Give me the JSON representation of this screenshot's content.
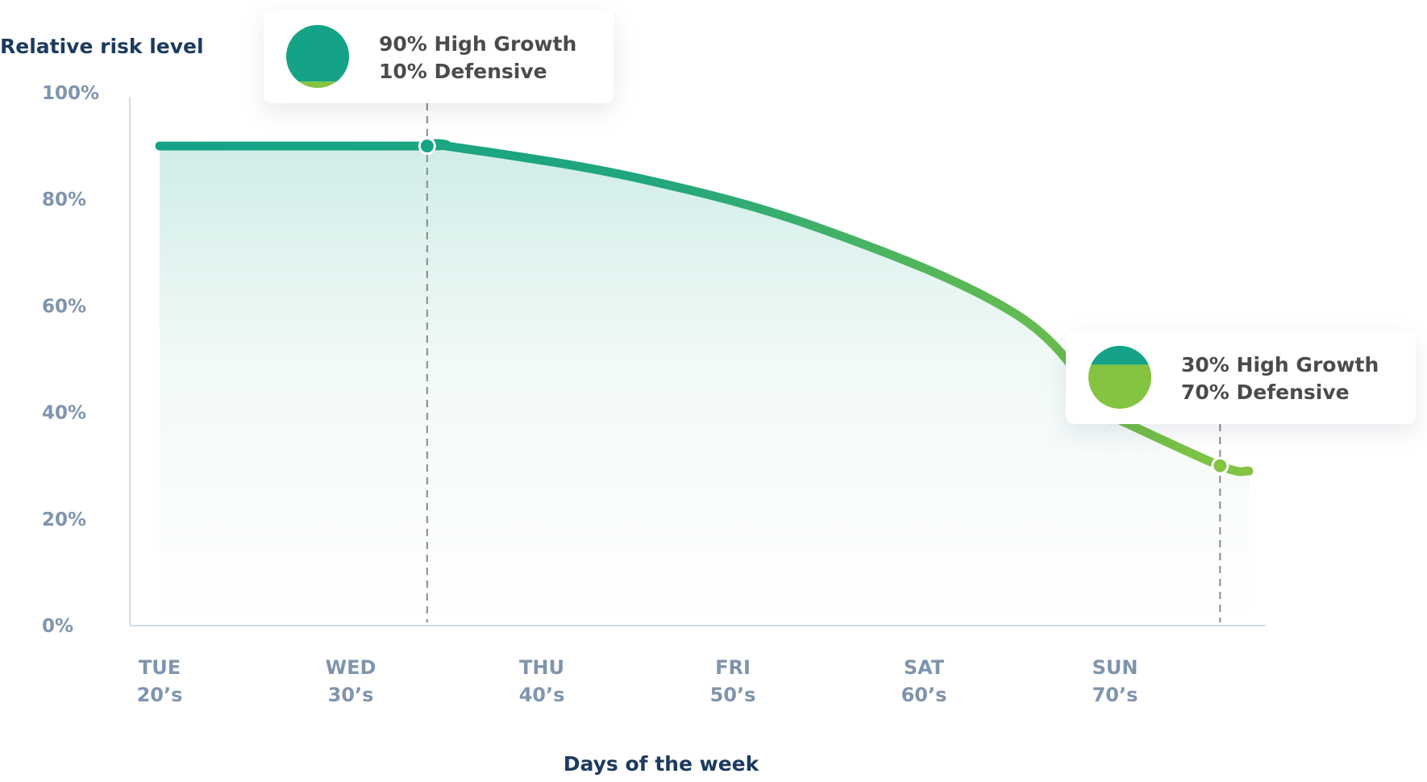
{
  "colors": {
    "high_growth": "#14a387",
    "defensive": "#84c441",
    "axis_title": "#1d3a5f",
    "tick": "#7f95ad"
  },
  "chart_data": {
    "type": "area",
    "ylabel": "Relative risk level",
    "xlabel": "Days of the week",
    "ylim": [
      0,
      100
    ],
    "yticks": [
      "100%",
      "80%",
      "60%",
      "40%",
      "20%",
      "0%"
    ],
    "categories": [
      {
        "day": "TUE",
        "age": "20’s"
      },
      {
        "day": "WED",
        "age": "30’s"
      },
      {
        "day": "THU",
        "age": "40’s"
      },
      {
        "day": "FRI",
        "age": "50’s"
      },
      {
        "day": "SAT",
        "age": "60’s"
      },
      {
        "day": "SUN",
        "age": "70’s"
      }
    ],
    "series": [
      {
        "x": [
          0,
          1.4,
          1.5,
          2.5,
          3.5,
          4.5,
          4.95,
          5.0,
          5.55,
          5.7
        ],
        "y": [
          90,
          90,
          90,
          84,
          74,
          58,
          40,
          39,
          30,
          29
        ]
      }
    ],
    "annotations": [
      {
        "x": 1.4,
        "y": 90,
        "line1": "90% High Growth",
        "line2": "10% Defensive",
        "high_growth_pct": 90,
        "defensive_pct": 10
      },
      {
        "x": 5.55,
        "y": 30,
        "line1": "30% High Growth",
        "line2": "70% Defensive",
        "high_growth_pct": 30,
        "defensive_pct": 70
      }
    ]
  }
}
